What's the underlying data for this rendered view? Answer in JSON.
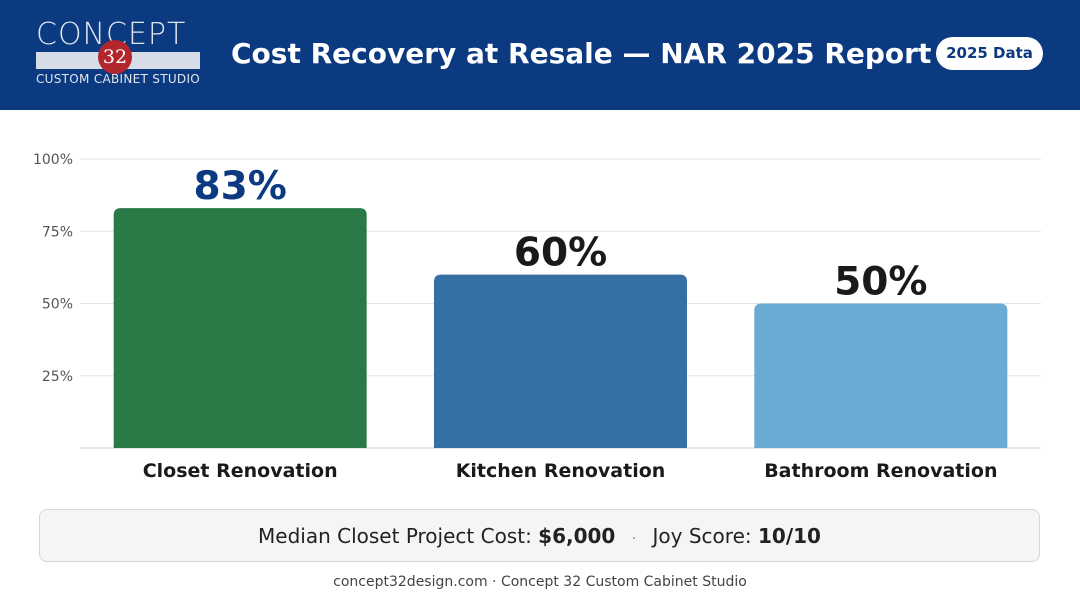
{
  "header": {
    "logo": {
      "word": "CONCEPT",
      "number": "32",
      "subtitle": "CUSTOM CABINET STUDIO"
    },
    "title": "Cost Recovery at Resale — NAR 2025 Report",
    "badge": "2025 Data"
  },
  "chart_data": {
    "type": "bar",
    "title": "Cost Recovery at Resale — NAR 2025 Report",
    "categories": [
      "Closet Renovation",
      "Kitchen Renovation",
      "Bathroom Renovation"
    ],
    "values": [
      83,
      60,
      50
    ],
    "data_labels": [
      "83%",
      "60%",
      "50%"
    ],
    "bar_colors": [
      "#2a7a47",
      "#356fa3",
      "#6aabd4"
    ],
    "label_colors": [
      "#0b3a80",
      "#1a1a1a",
      "#1a1a1a"
    ],
    "ylim": [
      0,
      100
    ],
    "yticks": [
      25,
      50,
      75,
      100
    ],
    "ytick_labels": [
      "25%",
      "50%",
      "75%",
      "100%"
    ],
    "grid": true,
    "legend": "none"
  },
  "footer": {
    "median_label": "Median Closet Project Cost:",
    "median_value": "$6,000",
    "separator": "·",
    "joy_label": "Joy Score:",
    "joy_value": "10/10"
  },
  "site": "concept32design.com · Concept 32 Custom Cabinet Studio"
}
